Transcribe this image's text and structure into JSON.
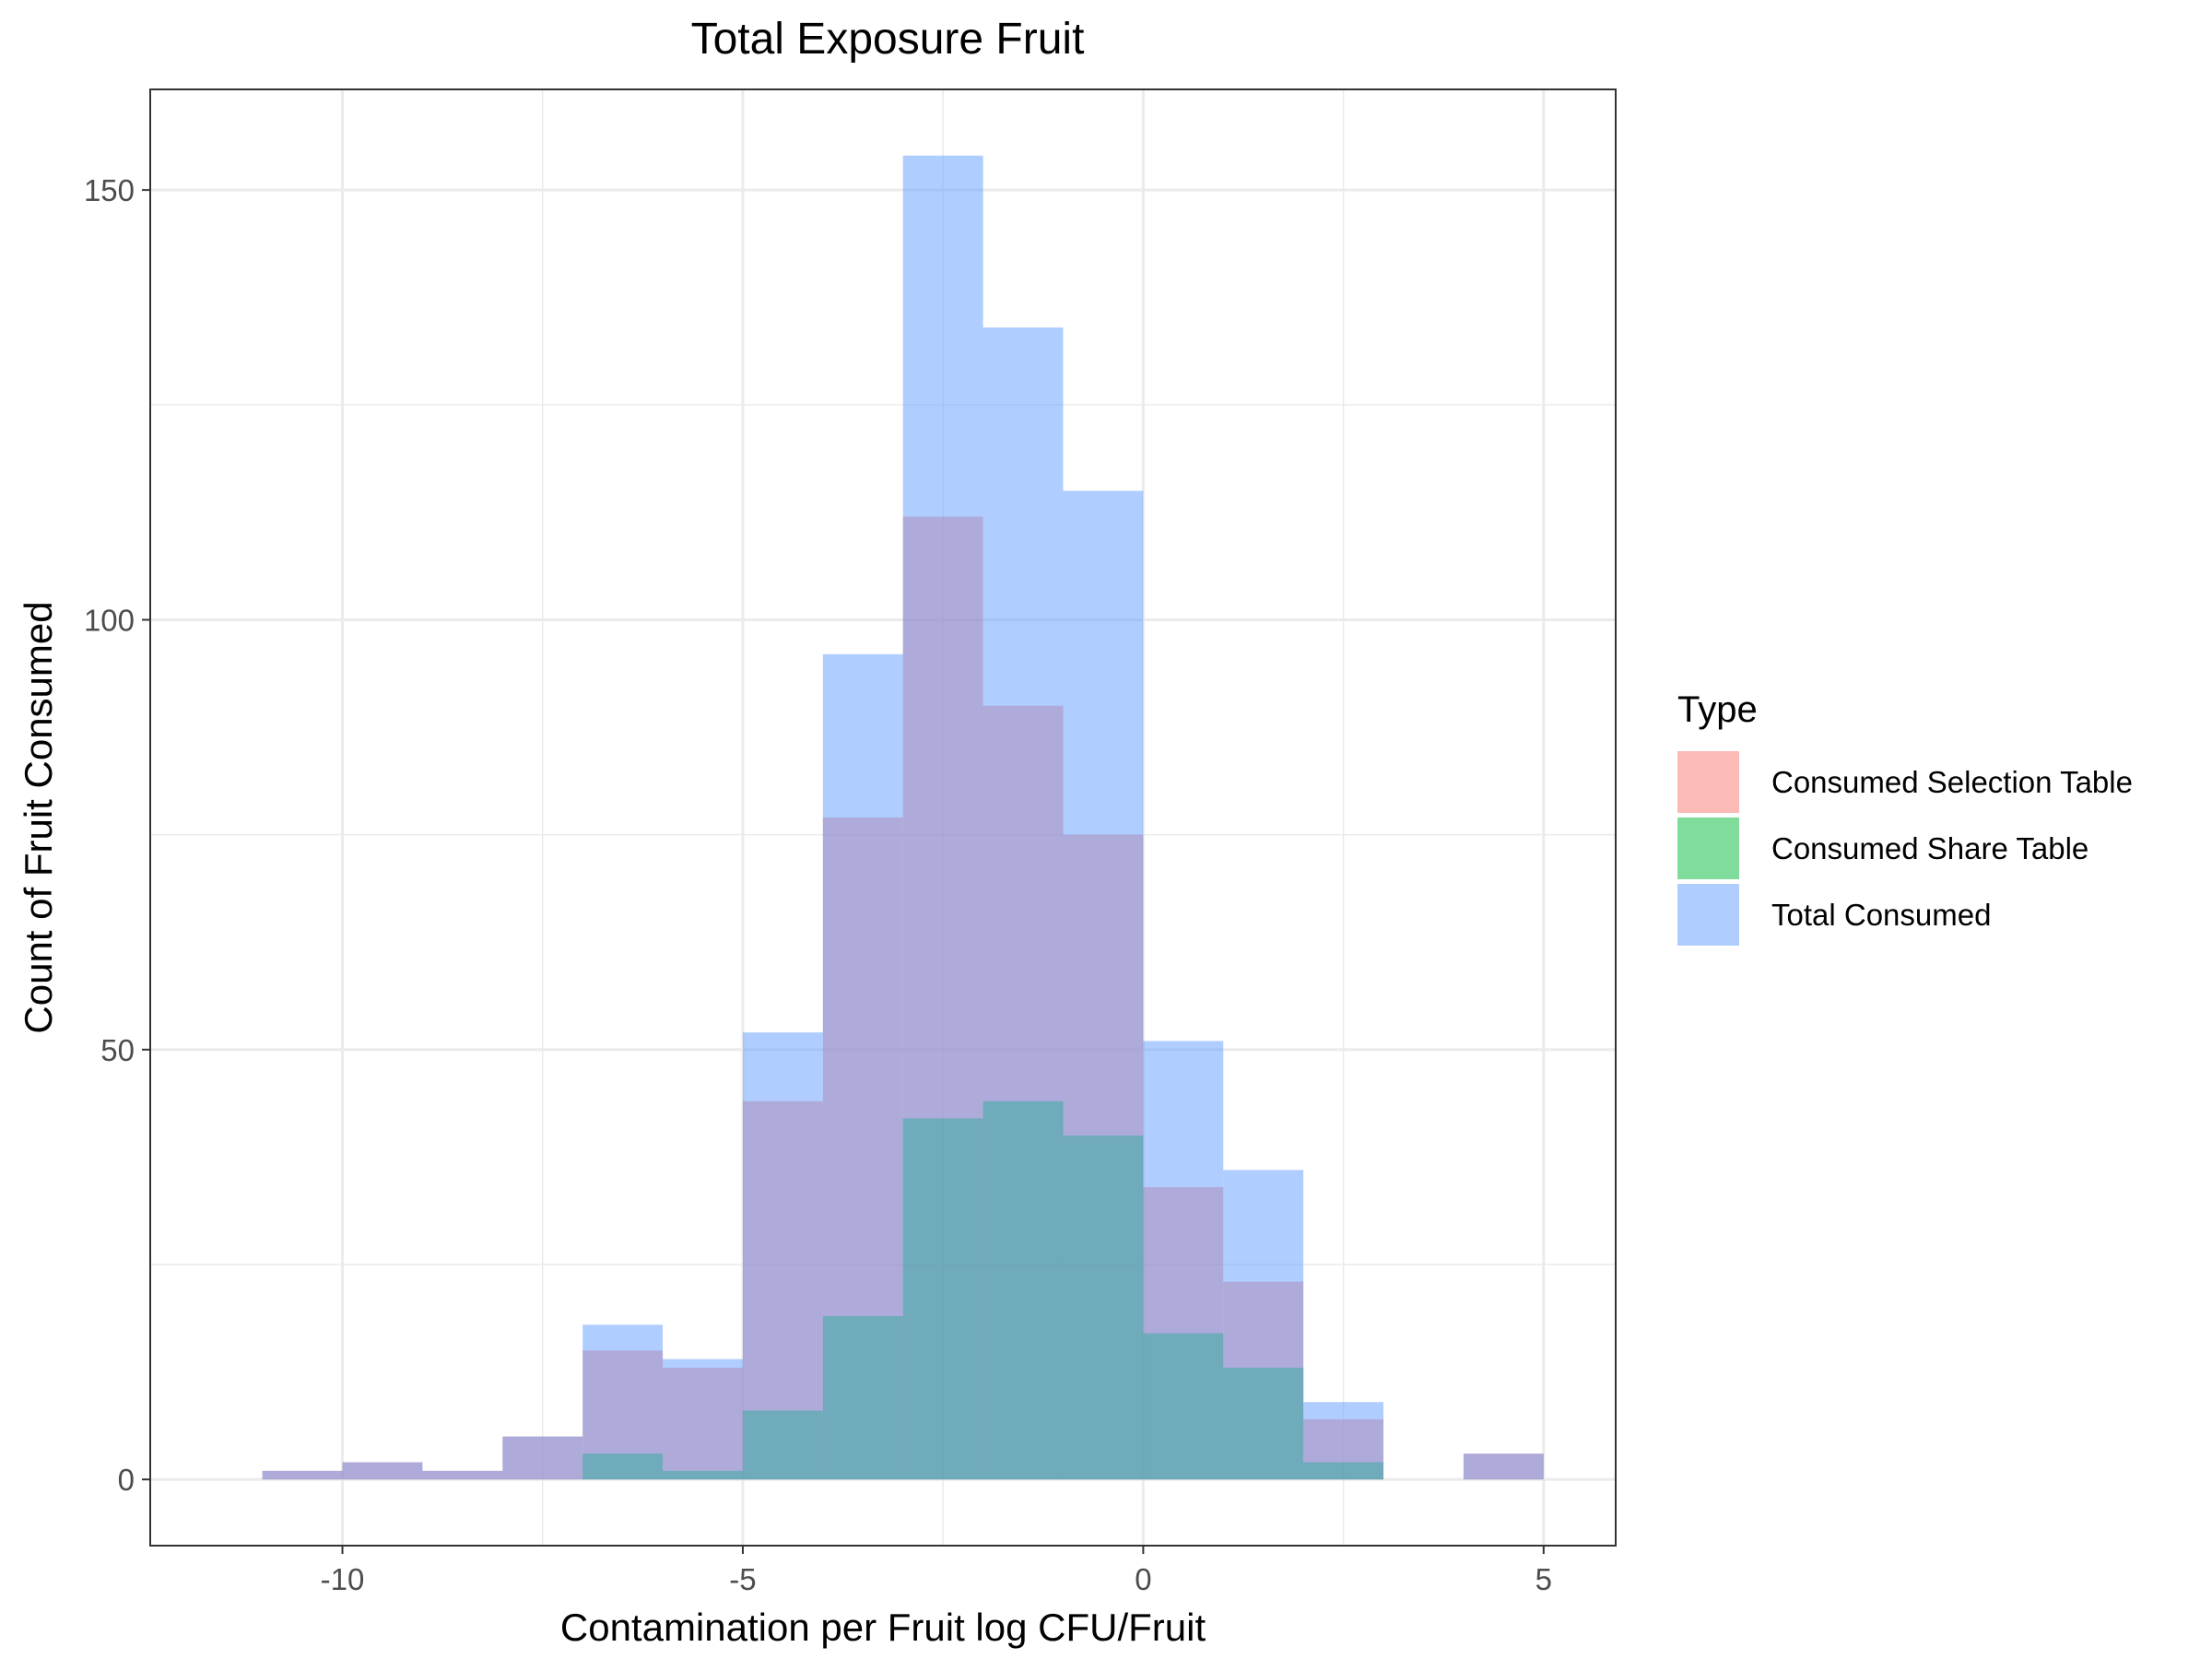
{
  "chart_data": {
    "type": "bar",
    "subtype": "overlapping-histogram",
    "title": "Total Exposure Fruit",
    "xlabel": "Contamination per Fruit log CFU/Fruit",
    "ylabel": "Count of Fruit Consumed",
    "xlim": [
      -12.4,
      5.9
    ],
    "ylim": [
      -7.7,
      161.7
    ],
    "x_ticks": [
      -10,
      -5,
      0,
      5
    ],
    "x_tick_labels": [
      "-10",
      "-5",
      "0",
      "5"
    ],
    "y_ticks": [
      0,
      50,
      100,
      150
    ],
    "y_tick_labels": [
      "0",
      "50",
      "100",
      "150"
    ],
    "bin_edges": [
      -11,
      -10,
      -9,
      -8,
      -7,
      -6,
      -5,
      -4,
      -3,
      -2,
      -1,
      0,
      1,
      2,
      3,
      4,
      5
    ],
    "grid": true,
    "legend_position": "right",
    "legend_title": "Type",
    "series": [
      {
        "name": "Consumed Selection Table",
        "color": "#F8766D",
        "values": [
          1,
          2,
          1,
          5,
          15,
          13,
          44,
          77,
          112,
          90,
          75,
          34,
          23,
          7,
          0,
          3
        ]
      },
      {
        "name": "Consumed Share Table",
        "color": "#00BA38",
        "values": [
          0,
          0,
          0,
          0,
          3,
          1,
          8,
          19,
          42,
          44,
          40,
          17,
          13,
          2,
          0,
          0
        ]
      },
      {
        "name": "Total Consumed",
        "color": "#619CFF",
        "values": [
          1,
          2,
          1,
          5,
          18,
          14,
          52,
          96,
          154,
          134,
          115,
          51,
          36,
          9,
          0,
          3
        ]
      }
    ]
  }
}
